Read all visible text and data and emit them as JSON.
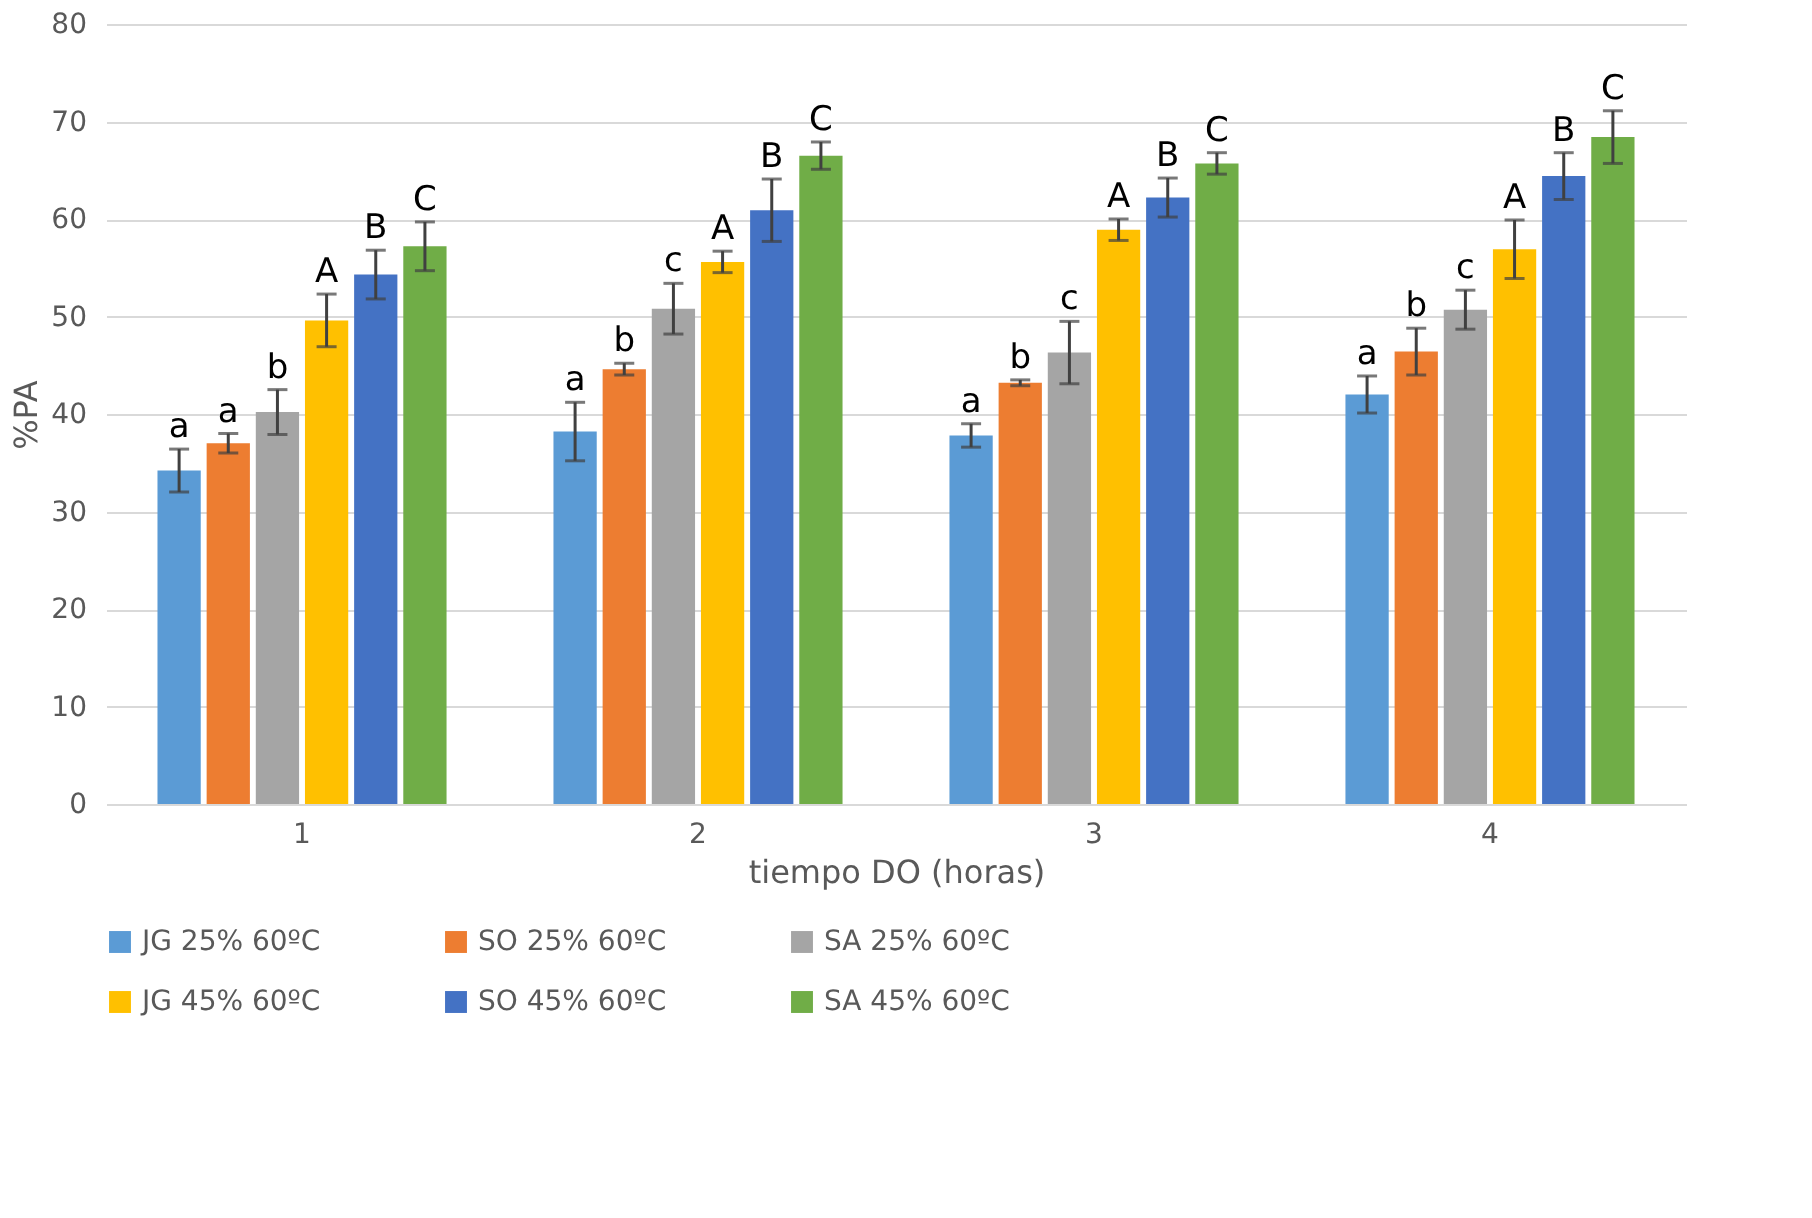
{
  "chart_data": {
    "type": "bar",
    "xlabel": "tiempo DO (horas)",
    "ylabel": "%PA",
    "categories": [
      "1",
      "2",
      "3",
      "4"
    ],
    "ylim": [
      0,
      80
    ],
    "yticks": [
      0,
      10,
      20,
      30,
      40,
      50,
      60,
      70,
      80
    ],
    "grid": "y",
    "legend": "bottom",
    "series": [
      {
        "name": "JG 25% 60ºC",
        "color": "#5b9bd5",
        "values": [
          34.2,
          38.2,
          37.8,
          42.0
        ],
        "errors": [
          2.2,
          3.0,
          1.2,
          1.9
        ],
        "value_labels": [
          "a",
          "a",
          "a",
          "a"
        ]
      },
      {
        "name": "SO 25% 60ºC",
        "color": "#ed7d31",
        "values": [
          37.0,
          44.6,
          43.2,
          46.4
        ],
        "errors": [
          1.0,
          0.6,
          0.3,
          2.4
        ],
        "value_labels": [
          "a",
          "b",
          "b",
          "b"
        ]
      },
      {
        "name": "SA 25% 60ºC",
        "color": "#a5a5a5",
        "values": [
          40.2,
          50.8,
          46.3,
          50.7
        ],
        "errors": [
          2.3,
          2.6,
          3.2,
          2.0
        ],
        "value_labels": [
          "b",
          "c",
          "c",
          "c"
        ]
      },
      {
        "name": "JG 45% 60ºC",
        "color": "#ffc000",
        "values": [
          49.6,
          55.6,
          58.9,
          56.9
        ],
        "errors": [
          2.7,
          1.1,
          1.1,
          3.0
        ],
        "value_labels": [
          "A",
          "A",
          "A",
          "A"
        ]
      },
      {
        "name": "SO 45% 60ºC",
        "color": "#4472c4",
        "values": [
          54.3,
          60.9,
          62.2,
          64.4
        ],
        "errors": [
          2.5,
          3.2,
          2.0,
          2.4
        ],
        "value_labels": [
          "B",
          "B",
          "B",
          "B"
        ]
      },
      {
        "name": "SA 45% 60ºC",
        "color": "#70ad47",
        "values": [
          57.2,
          66.5,
          65.7,
          68.4
        ],
        "errors": [
          2.5,
          1.4,
          1.1,
          2.7
        ],
        "value_labels": [
          "C",
          "C",
          "C",
          "C"
        ]
      }
    ]
  }
}
